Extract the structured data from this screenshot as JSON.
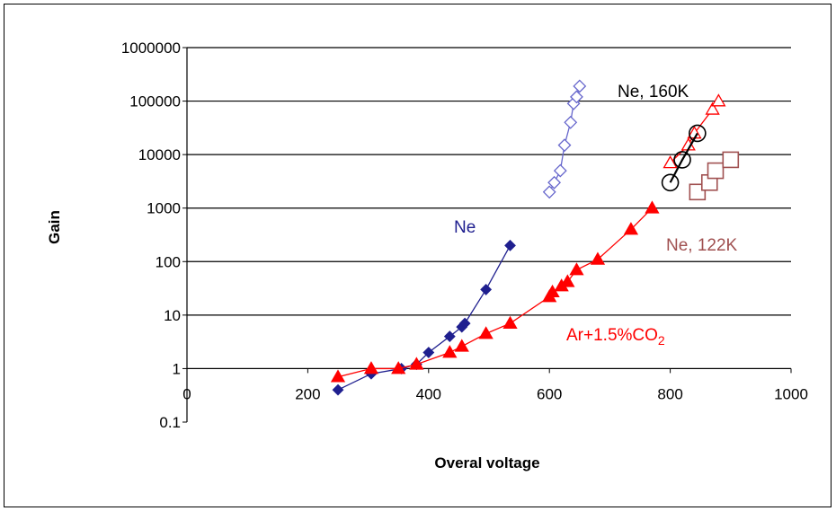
{
  "chart_data": {
    "type": "scatter",
    "xlabel": "Overal voltage",
    "ylabel": "Gain",
    "xlim": [
      0,
      1000
    ],
    "ylim": [
      0.1,
      1000000
    ],
    "y_scale": "log",
    "x_ticks": [
      "0",
      "200",
      "400",
      "600",
      "800",
      "1000"
    ],
    "y_ticks": [
      "0.1",
      "1",
      "10",
      "100",
      "1000",
      "10000",
      "100000",
      "1000000"
    ],
    "grid": "horizontal",
    "legend": "none",
    "series": [
      {
        "name": "Ne",
        "color": "#1f1f8f",
        "marker": "diamond-filled",
        "connected": true,
        "x": [
          250,
          305,
          355,
          380,
          400,
          435,
          455,
          460,
          495,
          535
        ],
        "y": [
          0.4,
          0.8,
          1.0,
          1.2,
          2.0,
          4.0,
          6.0,
          7.0,
          30,
          200
        ]
      },
      {
        "name": "Ar+1.5%CO2",
        "color": "#ff0000",
        "marker": "triangle-filled",
        "connected": true,
        "x": [
          250,
          305,
          350,
          380,
          435,
          455,
          495,
          535,
          600,
          605,
          620,
          630,
          645,
          680,
          735,
          770
        ],
        "y": [
          0.7,
          1.0,
          1.0,
          1.2,
          2.0,
          2.6,
          4.5,
          7.0,
          22,
          27,
          35,
          42,
          70,
          110,
          400,
          1000
        ]
      },
      {
        "name": "",
        "color": "#6666cc",
        "marker": "diamond-open",
        "connected": true,
        "x": [
          600,
          608,
          618,
          625,
          635,
          640,
          645,
          650
        ],
        "y": [
          2000,
          3000,
          5000,
          15000,
          40000,
          90000,
          120000,
          190000
        ]
      },
      {
        "name": "",
        "color": "#ff0000",
        "marker": "triangle-open",
        "connected": true,
        "x": [
          800,
          830,
          840,
          870,
          880
        ],
        "y": [
          7000,
          15000,
          25000,
          70000,
          100000
        ]
      },
      {
        "name": "Ne, 160K",
        "color": "#000000",
        "marker": "circle-open",
        "connected": true,
        "x": [
          800,
          820,
          845
        ],
        "y": [
          3000,
          8000,
          25000
        ]
      },
      {
        "name": "Ne, 122K",
        "color": "#a05050",
        "marker": "square-open",
        "connected": false,
        "x": [
          845,
          865,
          875,
          900
        ],
        "y": [
          2000,
          3000,
          5000,
          8000
        ]
      }
    ],
    "annotations": [
      {
        "text": "Ne",
        "color": "#1f1f8f"
      },
      {
        "text": "Ne, 160K",
        "color": "#000000"
      },
      {
        "text": "Ne, 122K",
        "color": "#a05050"
      },
      {
        "text": "Ar+1.5%CO",
        "subscript": "2",
        "color": "#ff0000"
      }
    ]
  }
}
